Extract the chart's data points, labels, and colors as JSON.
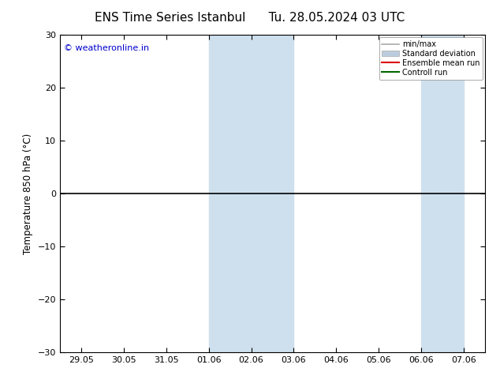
{
  "title_left": "ENS Time Series Istanbul",
  "title_right": "Tu. 28.05.2024 03 UTC",
  "ylabel": "Temperature 850 hPa (°C)",
  "watermark": "© weatheronline.in",
  "ylim": [
    -30,
    30
  ],
  "yticks": [
    -30,
    -20,
    -10,
    0,
    10,
    20,
    30
  ],
  "xtick_labels": [
    "29.05",
    "30.05",
    "31.05",
    "01.06",
    "02.06",
    "03.06",
    "04.06",
    "05.06",
    "06.06",
    "07.06"
  ],
  "x_values": [
    0,
    1,
    2,
    3,
    4,
    5,
    6,
    7,
    8,
    9
  ],
  "shade_bands": [
    {
      "xmin": 3,
      "xmax": 5,
      "color": "#cee0ee",
      "alpha": 1.0
    },
    {
      "xmin": 8,
      "xmax": 9,
      "color": "#cee0ee",
      "alpha": 1.0
    }
  ],
  "hline_y": 0,
  "hline_color": "#000000",
  "hline_lw": 1.2,
  "legend_entries": [
    {
      "label": "min/max",
      "color": "#aaaaaa",
      "lw": 1.2
    },
    {
      "label": "Standard deviation",
      "color": "#bbccdd",
      "lw": 6
    },
    {
      "label": "Ensemble mean run",
      "color": "#dd0000",
      "lw": 1.5
    },
    {
      "label": "Controll run",
      "color": "#006600",
      "lw": 1.5
    }
  ],
  "bg_color": "#ffffff",
  "title_fontsize": 11,
  "axis_fontsize": 8.5,
  "tick_fontsize": 8,
  "watermark_color": "#0000cc",
  "watermark_fontsize": 8
}
